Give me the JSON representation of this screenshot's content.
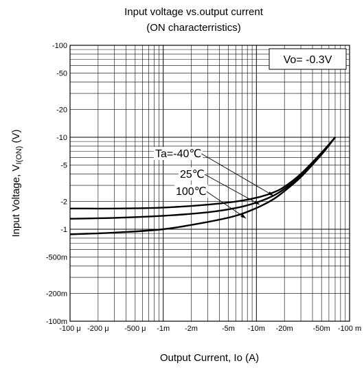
{
  "chart_data": {
    "type": "line",
    "title": "Input voltage vs.output current",
    "subtitle": "(ON characterristics)",
    "xlabel": "Output Current, Io  (A)",
    "ylabel": "Input Voltage, VI(ON) (V)",
    "ylabel_main": "Input Voltage, V",
    "ylabel_sub": "I(ON)",
    "ylabel_unit": " (V)",
    "x_scale": "log",
    "y_scale": "log",
    "xlim": [
      0.0001,
      0.1
    ],
    "ylim": [
      0.1,
      100
    ],
    "grid": true,
    "x_ticks": [
      {
        "value": 0.0001,
        "label": "-100 μ"
      },
      {
        "value": 0.0002,
        "label": "-200 μ"
      },
      {
        "value": 0.0005,
        "label": "-500 μ"
      },
      {
        "value": 0.001,
        "label": "-1m"
      },
      {
        "value": 0.002,
        "label": "-2m"
      },
      {
        "value": 0.005,
        "label": "-5m"
      },
      {
        "value": 0.01,
        "label": "-10m"
      },
      {
        "value": 0.02,
        "label": "-20m"
      },
      {
        "value": 0.05,
        "label": "-50m"
      },
      {
        "value": 0.1,
        "label": "-100 m"
      }
    ],
    "y_ticks": [
      {
        "value": 100,
        "label": "-100"
      },
      {
        "value": 50,
        "label": "-50"
      },
      {
        "value": 20,
        "label": "-20"
      },
      {
        "value": 10,
        "label": "-10"
      },
      {
        "value": 5,
        "label": "-5"
      },
      {
        "value": 2,
        "label": "-2"
      },
      {
        "value": 1,
        "label": "-1"
      },
      {
        "value": 0.5,
        "label": "-500m"
      },
      {
        "value": 0.2,
        "label": "-200m"
      },
      {
        "value": 0.1,
        "label": "-100m"
      }
    ],
    "condition_label": "Vo= -0.3V",
    "series": [
      {
        "name": "Ta=-40℃",
        "x": [
          0.0001,
          0.0003,
          0.001,
          0.003,
          0.006,
          0.01,
          0.015,
          0.02,
          0.03,
          0.05,
          0.07
        ],
        "y": [
          1.68,
          1.68,
          1.72,
          1.85,
          2.0,
          2.2,
          2.5,
          2.9,
          4.0,
          6.8,
          10.0
        ]
      },
      {
        "name": "25℃",
        "x": [
          0.0001,
          0.0003,
          0.001,
          0.003,
          0.006,
          0.01,
          0.015,
          0.02,
          0.03,
          0.05,
          0.07
        ],
        "y": [
          1.3,
          1.33,
          1.4,
          1.53,
          1.7,
          1.95,
          2.3,
          2.75,
          3.8,
          6.6,
          10.0
        ]
      },
      {
        "name": "100℃",
        "x": [
          0.0001,
          0.0003,
          0.001,
          0.003,
          0.006,
          0.01,
          0.015,
          0.02,
          0.03,
          0.05,
          0.07
        ],
        "y": [
          0.88,
          0.92,
          1.0,
          1.2,
          1.4,
          1.7,
          2.1,
          2.6,
          3.7,
          6.5,
          10.0
        ]
      }
    ]
  }
}
